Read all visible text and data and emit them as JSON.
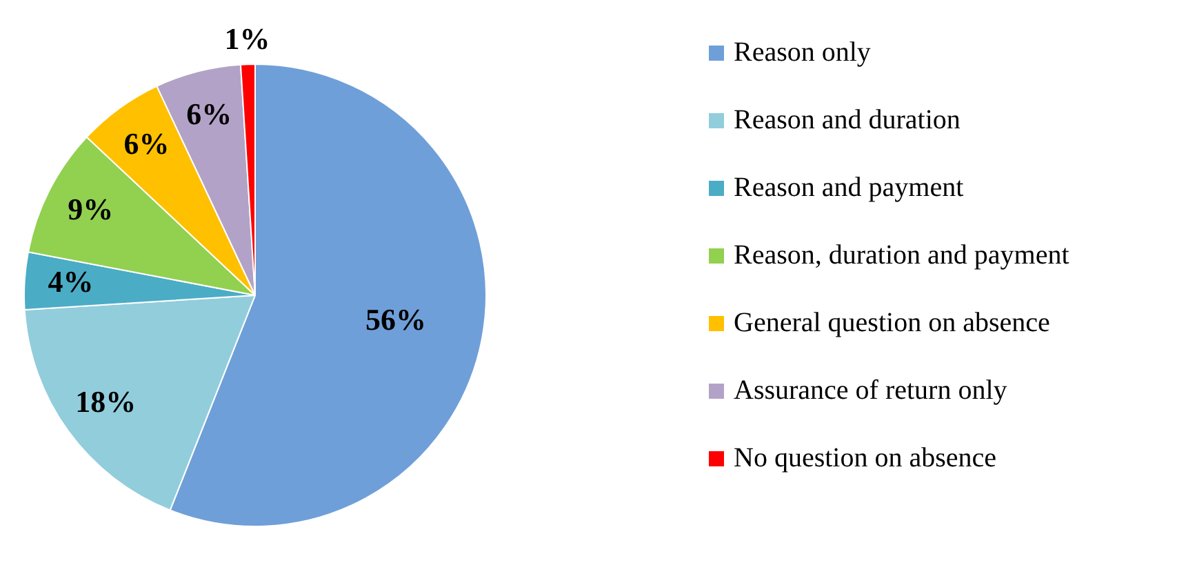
{
  "chart_data": {
    "type": "pie",
    "categories": [
      "Reason only",
      "Reason and duration",
      "Reason and payment",
      "Reason, duration and payment",
      "General question on absence",
      "Assurance of return only",
      "No question on absence"
    ],
    "values": [
      56,
      18,
      4,
      9,
      6,
      6,
      1
    ],
    "value_labels": [
      "56%",
      "18%",
      "4%",
      "9%",
      "6%",
      "6%",
      "1%"
    ],
    "colors": [
      "#6f9fd8",
      "#92cddc",
      "#4bacc6",
      "#92d050",
      "#ffc000",
      "#b3a2c7",
      "#ff0000"
    ],
    "legend": "right"
  }
}
